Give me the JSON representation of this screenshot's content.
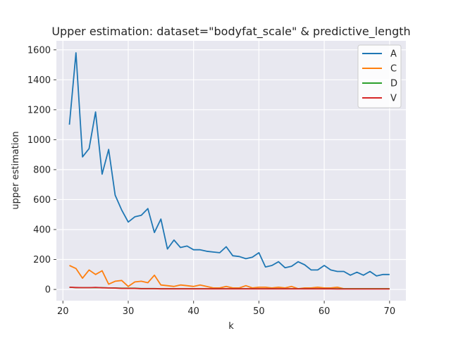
{
  "chart_data": {
    "type": "line",
    "title": "Upper estimation: dataset=\"bodyfat_scale\" & predictive_length",
    "xlabel": "k",
    "ylabel": "upper estimation",
    "xlim": [
      19,
      72.5
    ],
    "ylim": [
      -75,
      1660
    ],
    "xticks": [
      20,
      30,
      40,
      50,
      60,
      70
    ],
    "yticks": [
      0,
      200,
      400,
      600,
      800,
      1000,
      1200,
      1400,
      1600
    ],
    "grid": true,
    "background": "#e8e8f0",
    "legend_position": "top-right",
    "x": [
      21,
      22,
      23,
      24,
      25,
      26,
      27,
      28,
      29,
      30,
      31,
      32,
      33,
      34,
      35,
      36,
      37,
      38,
      39,
      40,
      41,
      42,
      43,
      44,
      45,
      46,
      47,
      48,
      49,
      50,
      51,
      52,
      53,
      54,
      55,
      56,
      57,
      58,
      59,
      60,
      61,
      62,
      63,
      64,
      65,
      66,
      67,
      68,
      69,
      70
    ],
    "series": [
      {
        "name": "A",
        "color": "#1f77b4",
        "values": [
          1100,
          1580,
          885,
          940,
          1185,
          770,
          935,
          630,
          530,
          450,
          485,
          495,
          540,
          380,
          470,
          270,
          330,
          280,
          290,
          265,
          265,
          255,
          250,
          245,
          285,
          225,
          220,
          205,
          215,
          245,
          150,
          160,
          185,
          145,
          155,
          185,
          165,
          130,
          130,
          160,
          130,
          120,
          120,
          95,
          115,
          95,
          120,
          90,
          100,
          100
        ]
      },
      {
        "name": "C",
        "color": "#ff7f0e",
        "values": [
          160,
          140,
          75,
          130,
          100,
          125,
          35,
          55,
          60,
          20,
          50,
          55,
          45,
          95,
          30,
          25,
          20,
          30,
          25,
          20,
          30,
          20,
          10,
          10,
          20,
          10,
          10,
          25,
          10,
          15,
          15,
          10,
          15,
          10,
          20,
          5,
          10,
          10,
          15,
          10,
          10,
          15,
          5,
          5,
          5,
          5,
          5,
          5,
          5,
          5
        ]
      },
      {
        "name": "D",
        "color": "#2ca02c",
        "values": [
          15,
          12,
          12,
          12,
          12,
          12,
          10,
          10,
          8,
          8,
          8,
          6,
          6,
          6,
          5,
          5,
          5,
          5,
          5,
          5,
          5,
          5,
          5,
          5,
          5,
          5,
          5,
          5,
          5,
          5,
          5,
          5,
          5,
          5,
          5,
          5,
          5,
          5,
          5,
          5,
          5,
          5,
          5,
          5,
          5,
          5,
          5,
          5,
          5,
          5
        ]
      },
      {
        "name": "V",
        "color": "#d62728",
        "values": [
          15,
          13,
          12,
          12,
          14,
          11,
          10,
          9,
          7,
          7,
          7,
          5,
          5,
          5,
          4,
          4,
          4,
          4,
          4,
          4,
          4,
          4,
          4,
          4,
          4,
          4,
          4,
          4,
          4,
          4,
          4,
          4,
          4,
          4,
          4,
          4,
          4,
          4,
          4,
          4,
          4,
          3,
          3,
          3,
          3,
          3,
          3,
          3,
          3,
          3
        ]
      }
    ]
  }
}
